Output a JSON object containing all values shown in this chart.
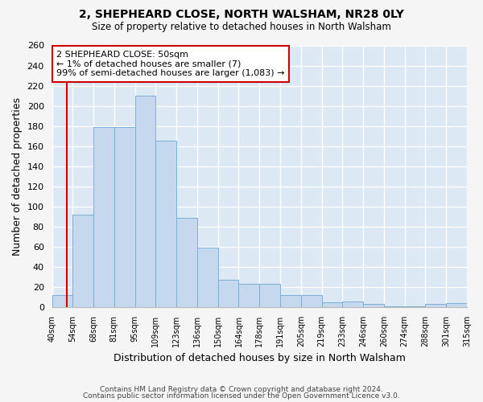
{
  "title": "2, SHEPHEARD CLOSE, NORTH WALSHAM, NR28 0LY",
  "subtitle": "Size of property relative to detached houses in North Walsham",
  "xlabel": "Distribution of detached houses by size in North Walsham",
  "ylabel": "Number of detached properties",
  "bar_color": "#c5d8ee",
  "bar_edge_color": "#7bafd4",
  "annotation_text": "2 SHEPHEARD CLOSE: 50sqm\n← 1% of detached houses are smaller (7)\n99% of semi-detached houses are larger (1,083) →",
  "annotation_box_facecolor": "#ffffff",
  "annotation_box_edgecolor": "#cc0000",
  "vline_color": "#cc0000",
  "categories": [
    "40sqm",
    "54sqm",
    "68sqm",
    "81sqm",
    "95sqm",
    "109sqm",
    "123sqm",
    "136sqm",
    "150sqm",
    "164sqm",
    "178sqm",
    "191sqm",
    "205sqm",
    "219sqm",
    "233sqm",
    "246sqm",
    "260sqm",
    "274sqm",
    "288sqm",
    "301sqm",
    "315sqm"
  ],
  "values": [
    12,
    92,
    179,
    179,
    210,
    165,
    89,
    59,
    27,
    23,
    23,
    12,
    12,
    5,
    6,
    3,
    1,
    1,
    3,
    4
  ],
  "ylim": [
    0,
    260
  ],
  "yticks": [
    0,
    20,
    40,
    60,
    80,
    100,
    120,
    140,
    160,
    180,
    200,
    220,
    240,
    260
  ],
  "background_color": "#f5f5f5",
  "plot_background_color": "#dde8f5",
  "footer1": "Contains HM Land Registry data © Crown copyright and database right 2024.",
  "footer2": "Contains public sector information licensed under the Open Government Licence v3.0."
}
